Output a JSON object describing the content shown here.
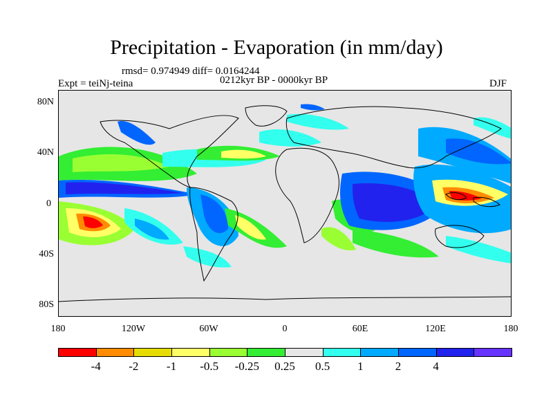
{
  "title": "Precipitation - Evaporation (in mm/day)",
  "stats_line": "rmsd= 0.974949 diff= 0.0164244",
  "period": "0212kyr BP - 0000kyr BP",
  "experiment": "Expt = teiNj-teina",
  "season": "DJF",
  "y_axis_labels": [
    "80N",
    "40N",
    "0",
    "40S",
    "80S"
  ],
  "x_axis_labels": [
    "180",
    "120W",
    "60W",
    "0",
    "60E",
    "120E",
    "180"
  ],
  "colorbar": {
    "colors": [
      "#ff0000",
      "#ff8c00",
      "#e6dc00",
      "#ffff66",
      "#99ff33",
      "#33ee33",
      "#e6e6e6",
      "#33ffee",
      "#00aaff",
      "#0066ff",
      "#2222ee",
      "#6633ff"
    ],
    "labels": [
      "-4",
      "-2",
      "-1",
      "-0.5",
      "-0.25",
      "0.25",
      "0.5",
      "1",
      "2",
      "4"
    ]
  }
}
